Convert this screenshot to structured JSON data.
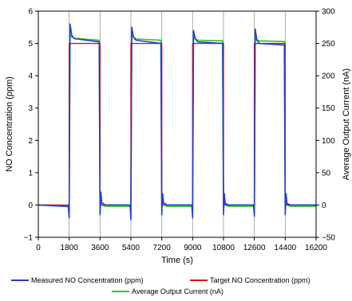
{
  "chart_data": {
    "type": "line",
    "xlabel": "Time (s)",
    "ylabel_left": "NO Concentration (ppm)",
    "ylabel_right": "Average Output Current (nA)",
    "xlim": [
      0,
      16200
    ],
    "ylim_left": [
      -1,
      6
    ],
    "ylim_right": [
      -50,
      300
    ],
    "x_ticks": [
      0,
      1800,
      3600,
      5400,
      7200,
      9000,
      10800,
      12600,
      14400,
      16200
    ],
    "y_left_ticks": [
      -1,
      0,
      1,
      2,
      3,
      4,
      5,
      6
    ],
    "y_right_ticks": [
      -50,
      0,
      50,
      100,
      150,
      200,
      250,
      300
    ],
    "grid": "vertical",
    "legend_position": "bottom",
    "colors": {
      "measured": "#1f3fd6",
      "target": "#e01010",
      "current": "#22cc22"
    },
    "series": [
      {
        "name": "Measured NO Concentration (ppm)",
        "axis": "left",
        "x": [
          0,
          1750,
          1800,
          1850,
          1950,
          2100,
          3550,
          3600,
          3650,
          3700,
          3900,
          5350,
          5400,
          5450,
          5550,
          5700,
          7150,
          7200,
          7250,
          7300,
          7500,
          8950,
          9000,
          9050,
          9150,
          9300,
          10750,
          10800,
          10850,
          10900,
          11100,
          12550,
          12600,
          12650,
          12750,
          12900,
          14350,
          14400,
          14450,
          14500,
          14700,
          16200
        ],
        "y": [
          0,
          -0.05,
          -0.4,
          5.6,
          5.25,
          5.15,
          5.05,
          -0.3,
          0.4,
          0.08,
          0.0,
          0.0,
          -0.45,
          5.5,
          5.2,
          5.1,
          5.0,
          -0.3,
          0.35,
          0.08,
          0.0,
          0.0,
          -0.4,
          5.4,
          5.15,
          5.05,
          5.0,
          -0.3,
          0.35,
          0.05,
          0.0,
          0.0,
          -0.35,
          5.45,
          5.1,
          5.0,
          4.95,
          -0.3,
          0.35,
          0.05,
          0.0,
          0.0
        ]
      },
      {
        "name": "Target NO Concentration (ppm)",
        "axis": "left",
        "x": [
          0,
          1800,
          1800,
          3600,
          3600,
          5400,
          5400,
          7200,
          7200,
          9000,
          9000,
          10800,
          10800,
          12600,
          12600,
          14400,
          14400,
          16200
        ],
        "y": [
          0,
          0,
          5,
          5,
          0,
          0,
          5,
          5,
          0,
          0,
          5,
          5,
          0,
          0,
          5,
          5,
          0,
          0
        ]
      },
      {
        "name": "Average Output Current (nA)",
        "axis": "right",
        "x": [
          0,
          1750,
          1800,
          1850,
          1950,
          2100,
          3550,
          3600,
          3650,
          3700,
          3900,
          5350,
          5400,
          5450,
          5550,
          5700,
          7150,
          7200,
          7250,
          7300,
          7500,
          8950,
          9000,
          9050,
          9150,
          9300,
          10750,
          10800,
          10850,
          10900,
          11100,
          12550,
          12600,
          12650,
          12750,
          12900,
          14350,
          14400,
          14450,
          14500,
          14700,
          16200
        ],
        "y": [
          0,
          -1,
          2,
          262,
          260,
          258,
          255,
          0,
          4,
          0,
          -2,
          -2,
          0,
          262,
          260,
          257,
          255,
          0,
          5,
          0,
          -2,
          -2,
          0,
          260,
          257,
          255,
          254,
          0,
          4,
          0,
          -2,
          -2,
          0,
          257,
          255,
          254,
          253,
          0,
          3,
          0,
          -2,
          -2
        ]
      }
    ]
  }
}
